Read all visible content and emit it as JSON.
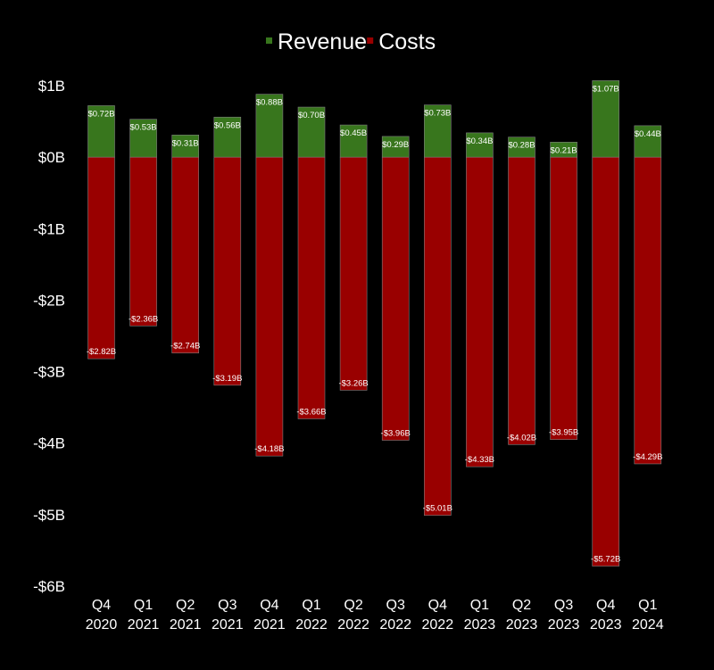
{
  "chart_data": {
    "type": "bar",
    "title": "",
    "xlabel": "",
    "ylabel": "",
    "ylim": [
      -6,
      1
    ],
    "y_ticks": [
      1,
      0,
      -1,
      -2,
      -3,
      -4,
      -5,
      -6
    ],
    "y_tick_labels": [
      "$1B",
      "$0B",
      "-$1B",
      "-$2B",
      "-$3B",
      "-$4B",
      "-$5B",
      "-$6B"
    ],
    "grid": false,
    "legend_position": "top-center",
    "categories": [
      [
        "Q4",
        "2020"
      ],
      [
        "Q1",
        "2021"
      ],
      [
        "Q2",
        "2021"
      ],
      [
        "Q3",
        "2021"
      ],
      [
        "Q4",
        "2021"
      ],
      [
        "Q1",
        "2022"
      ],
      [
        "Q2",
        "2022"
      ],
      [
        "Q3",
        "2022"
      ],
      [
        "Q4",
        "2022"
      ],
      [
        "Q1",
        "2023"
      ],
      [
        "Q2",
        "2023"
      ],
      [
        "Q3",
        "2023"
      ],
      [
        "Q4",
        "2023"
      ],
      [
        "Q1",
        "2024"
      ]
    ],
    "series": [
      {
        "name": "Revenue",
        "color": "#38761d",
        "values": [
          0.72,
          0.53,
          0.31,
          0.56,
          0.88,
          0.7,
          0.45,
          0.29,
          0.73,
          0.34,
          0.28,
          0.21,
          1.07,
          0.44
        ],
        "labels": [
          "$0.72B",
          "$0.53B",
          "$0.31B",
          "$0.56B",
          "$0.88B",
          "$0.70B",
          "$0.45B",
          "$0.29B",
          "$0.73B",
          "$0.34B",
          "$0.28B",
          "$0.21B",
          "$1.07B",
          "$0.44B"
        ]
      },
      {
        "name": "Costs",
        "color": "#990000",
        "values": [
          -2.82,
          -2.36,
          -2.74,
          -3.19,
          -4.18,
          -3.66,
          -3.26,
          -3.96,
          -5.01,
          -4.33,
          -4.02,
          -3.95,
          -5.72,
          -4.29
        ],
        "labels": [
          "-$2.82B",
          "-$2.36B",
          "-$2.74B",
          "-$3.19B",
          "-$4.18B",
          "-$3.66B",
          "-$3.26B",
          "-$3.96B",
          "-$5.01B",
          "-$4.33B",
          "-$4.02B",
          "-$3.95B",
          "-$5.72B",
          "-$4.29B"
        ]
      }
    ]
  },
  "colors": {
    "background": "#000000",
    "text": "#ffffff",
    "bar_edge": "#7f7f7f"
  }
}
